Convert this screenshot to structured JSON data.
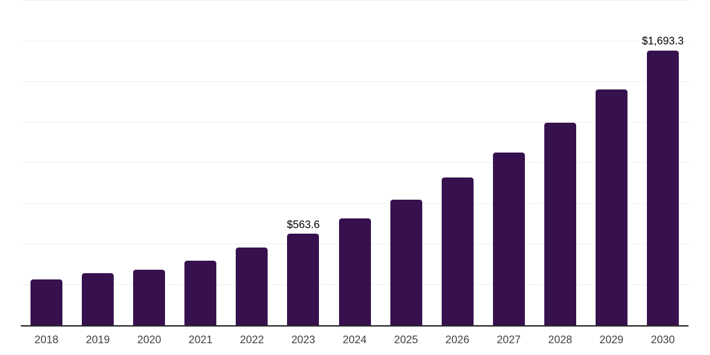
{
  "chart_data": {
    "type": "bar",
    "title": "",
    "xlabel": "",
    "ylabel": "",
    "categories": [
      "2018",
      "2019",
      "2020",
      "2021",
      "2022",
      "2023",
      "2024",
      "2025",
      "2026",
      "2027",
      "2028",
      "2029",
      "2030"
    ],
    "values": [
      280,
      320,
      341,
      397,
      477,
      563.6,
      660,
      774,
      912,
      1065,
      1247,
      1451,
      1693.3
    ],
    "bar_labels": [
      "",
      "",
      "",
      "",
      "",
      "$563.6",
      "",
      "",
      "",
      "",
      "",
      "",
      "$1,693.3"
    ],
    "ylim": [
      0,
      2000
    ],
    "gridline_step": 250,
    "grid": true,
    "y_tick_labels_shown": false,
    "legend": false
  },
  "colors": {
    "bar": "#36114E",
    "axis_line": "#2d2d2d",
    "gridline": "#f0f0f0",
    "value_label_text": "#000000",
    "tick_text": "#3d3d3d",
    "background": "#ffffff"
  }
}
